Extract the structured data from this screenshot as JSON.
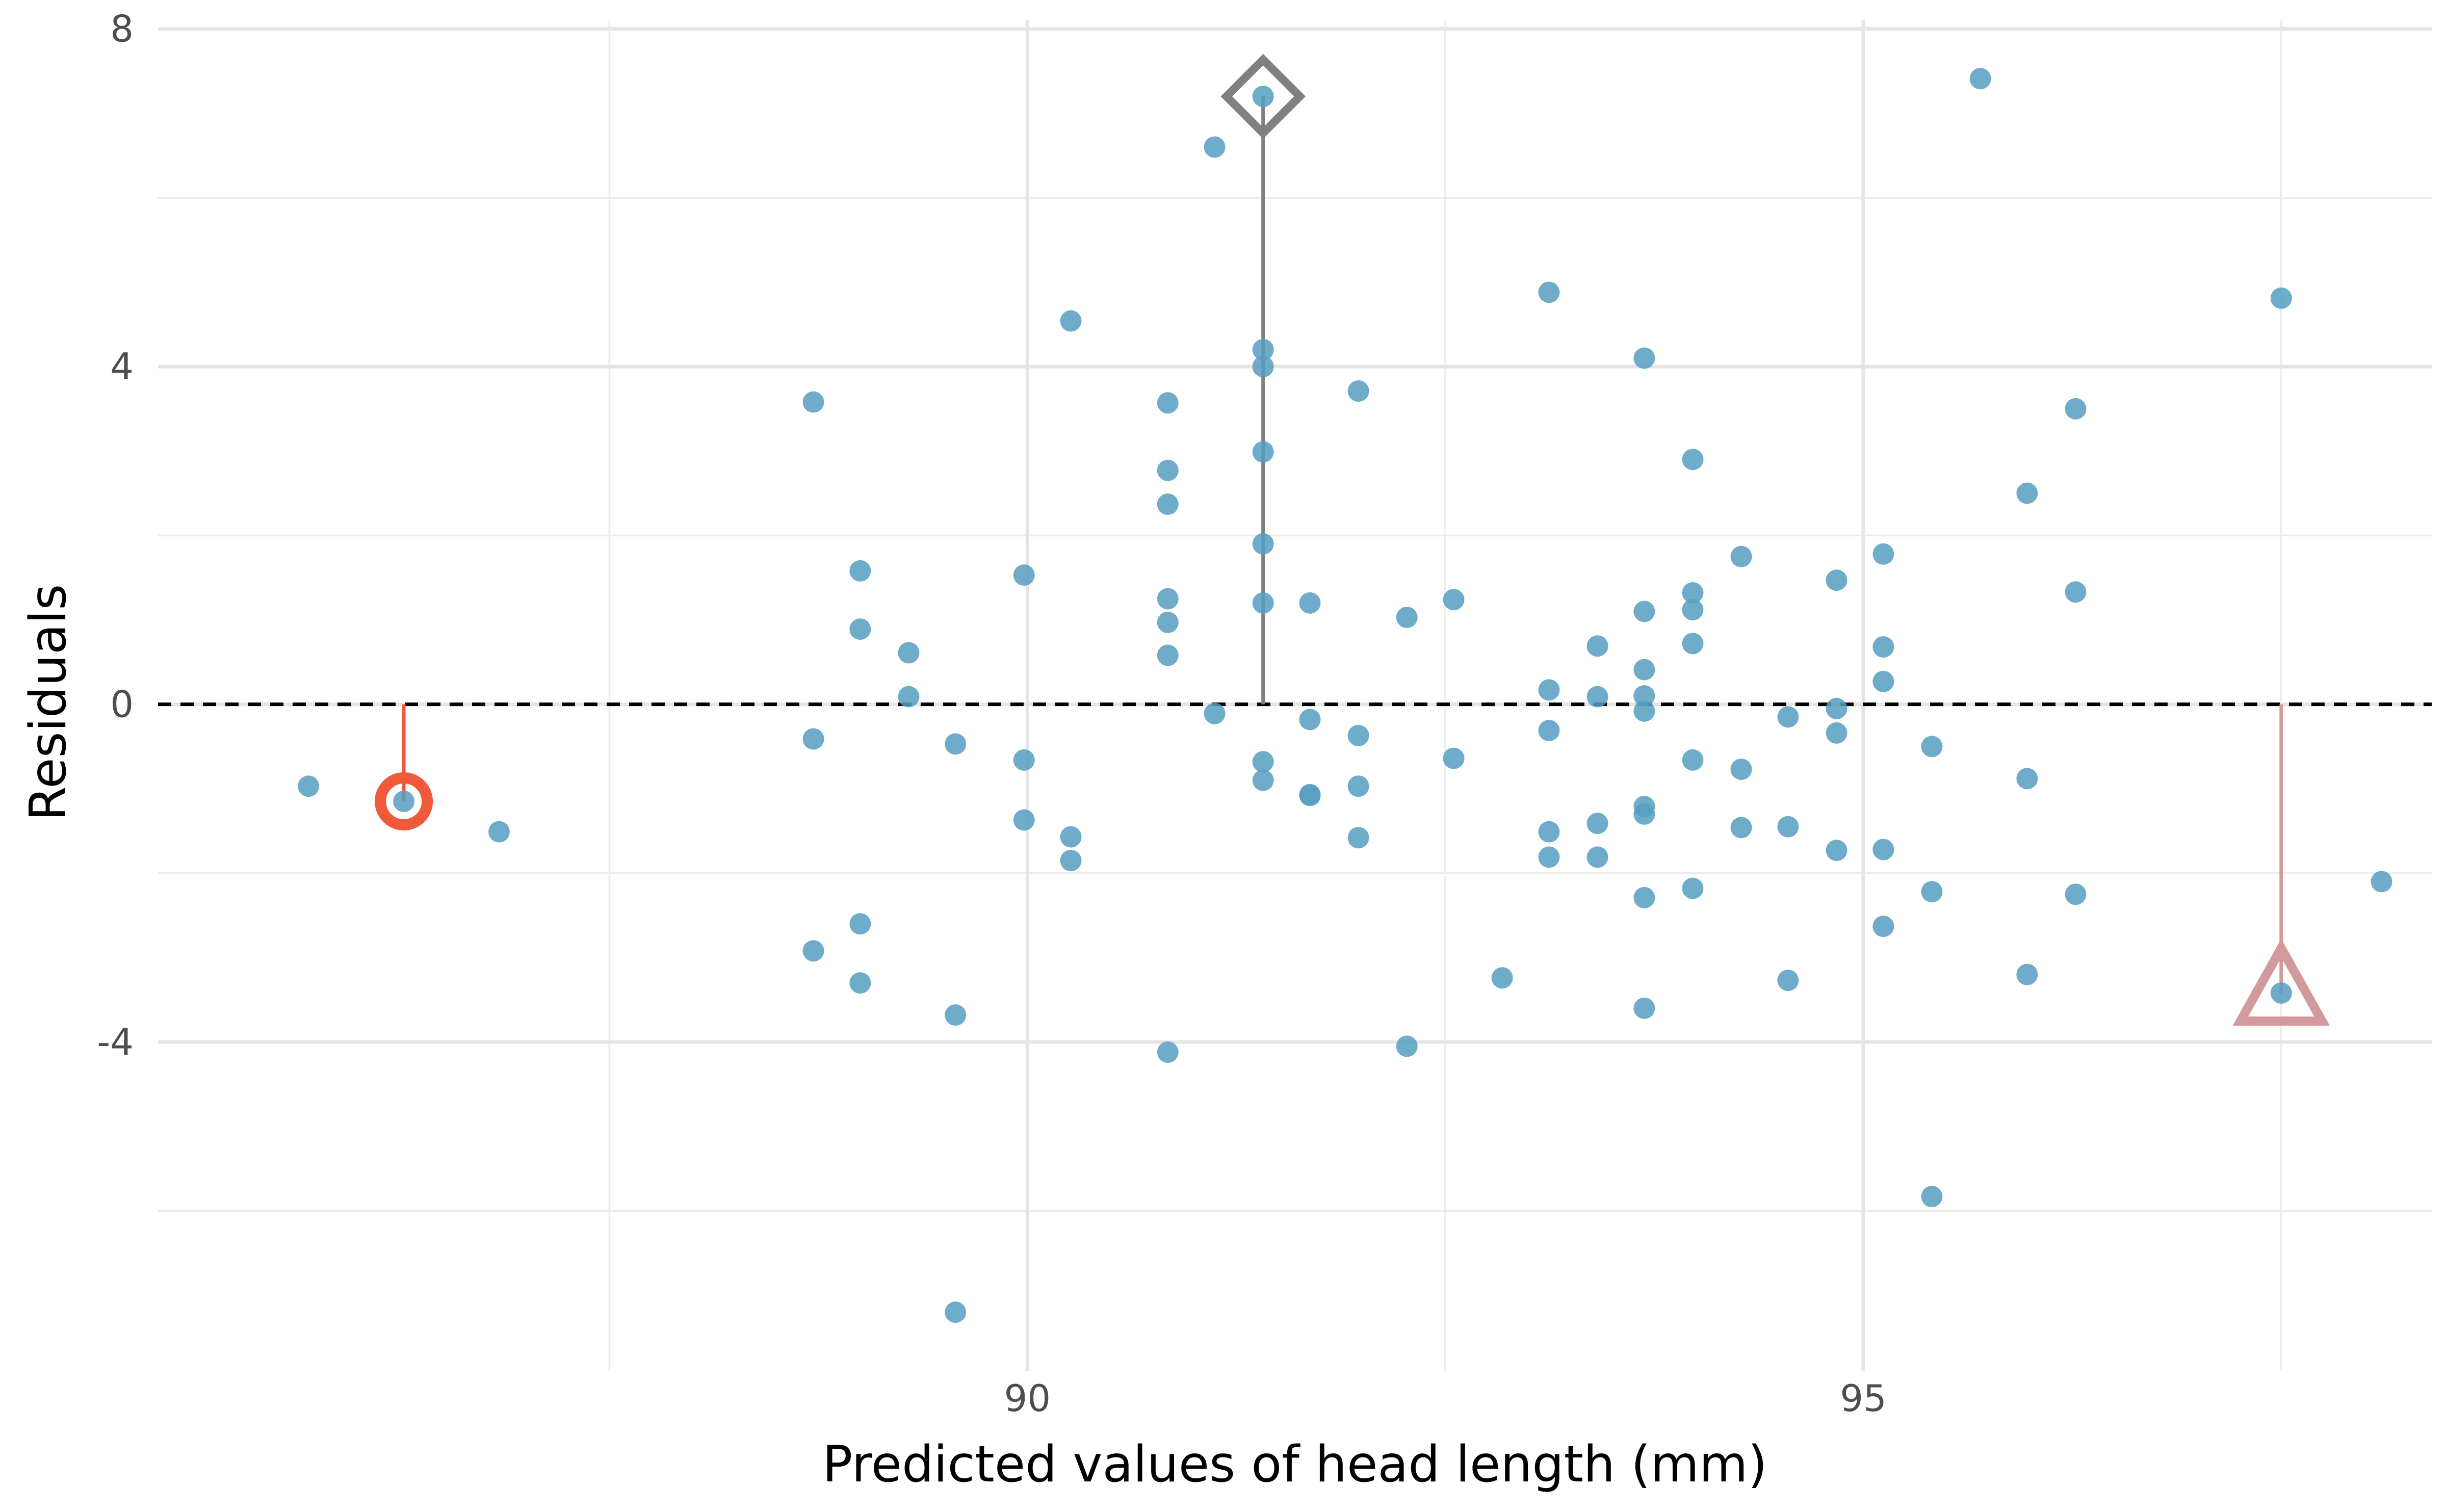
{
  "chart_data": {
    "type": "scatter",
    "title": "",
    "xlabel": "Predicted values of head length (mm)",
    "ylabel": "Residuals",
    "xlim": [
      84.8,
      98.4
    ],
    "ylim": [
      -7.9,
      8.1
    ],
    "x_ticks": [
      90,
      95
    ],
    "x_tick_labels": [
      "90",
      "95"
    ],
    "x_minor_ticks": [
      87.5,
      92.5,
      97.5
    ],
    "y_ticks": [
      -4,
      0,
      4,
      8
    ],
    "y_tick_labels": [
      "-4",
      "0",
      "4",
      "8"
    ],
    "y_minor_ticks": [
      -6,
      -2,
      2,
      6
    ],
    "grid": true,
    "reference_line": {
      "y": 0,
      "style": "dashed",
      "color": "#000000"
    },
    "point_color": "#569EBF",
    "points": [
      [
        85.7,
        -0.97
      ],
      [
        86.27,
        -1.15
      ],
      [
        86.84,
        -1.51
      ],
      [
        88.72,
        3.58
      ],
      [
        88.72,
        -0.41
      ],
      [
        88.72,
        -2.92
      ],
      [
        89.0,
        1.58
      ],
      [
        89.0,
        0.89
      ],
      [
        89.0,
        -2.6
      ],
      [
        89.0,
        -3.3
      ],
      [
        89.29,
        0.61
      ],
      [
        89.29,
        0.09
      ],
      [
        89.57,
        -0.47
      ],
      [
        89.57,
        -3.68
      ],
      [
        89.57,
        -7.2
      ],
      [
        89.98,
        1.53
      ],
      [
        89.98,
        -0.66
      ],
      [
        89.98,
        -1.37
      ],
      [
        90.26,
        4.54
      ],
      [
        90.26,
        -1.57
      ],
      [
        90.26,
        -1.85
      ],
      [
        90.84,
        3.57
      ],
      [
        90.84,
        2.77
      ],
      [
        90.84,
        2.37
      ],
      [
        90.84,
        1.25
      ],
      [
        90.84,
        0.97
      ],
      [
        90.84,
        0.58
      ],
      [
        90.84,
        -4.12
      ],
      [
        91.12,
        6.6
      ],
      [
        91.12,
        -0.11
      ],
      [
        91.41,
        7.2
      ],
      [
        91.41,
        4.2
      ],
      [
        91.41,
        4.0
      ],
      [
        91.41,
        2.99
      ],
      [
        91.41,
        1.9
      ],
      [
        91.41,
        1.2
      ],
      [
        91.41,
        -0.68
      ],
      [
        91.41,
        -0.9
      ],
      [
        91.69,
        1.2
      ],
      [
        91.69,
        -0.18
      ],
      [
        91.69,
        -1.07
      ],
      [
        91.69,
        -1.08
      ],
      [
        91.98,
        3.71
      ],
      [
        91.98,
        -0.37
      ],
      [
        91.98,
        -0.97
      ],
      [
        91.98,
        -1.58
      ],
      [
        92.27,
        1.03
      ],
      [
        92.27,
        -4.05
      ],
      [
        92.55,
        1.24
      ],
      [
        92.55,
        -0.64
      ],
      [
        92.84,
        -3.24
      ],
      [
        93.12,
        4.88
      ],
      [
        93.12,
        0.17
      ],
      [
        93.12,
        -0.31
      ],
      [
        93.12,
        -1.51
      ],
      [
        93.12,
        -1.81
      ],
      [
        93.41,
        0.69
      ],
      [
        93.41,
        0.09
      ],
      [
        93.41,
        -1.41
      ],
      [
        93.41,
        -1.81
      ],
      [
        93.69,
        4.1
      ],
      [
        93.69,
        1.1
      ],
      [
        93.69,
        0.41
      ],
      [
        93.69,
        0.1
      ],
      [
        93.69,
        -0.08
      ],
      [
        93.69,
        -1.21
      ],
      [
        93.69,
        -1.3
      ],
      [
        93.69,
        -2.29
      ],
      [
        93.69,
        -3.6
      ],
      [
        93.98,
        2.9
      ],
      [
        93.98,
        1.32
      ],
      [
        93.98,
        1.12
      ],
      [
        93.98,
        0.72
      ],
      [
        93.98,
        -0.66
      ],
      [
        93.98,
        -2.18
      ],
      [
        94.27,
        1.75
      ],
      [
        94.27,
        -0.77
      ],
      [
        94.27,
        -1.46
      ],
      [
        94.55,
        -0.15
      ],
      [
        94.55,
        -1.45
      ],
      [
        94.55,
        -3.27
      ],
      [
        94.84,
        1.47
      ],
      [
        94.84,
        -0.05
      ],
      [
        94.84,
        -0.34
      ],
      [
        94.84,
        -1.73
      ],
      [
        95.12,
        1.78
      ],
      [
        95.12,
        0.68
      ],
      [
        95.12,
        0.27
      ],
      [
        95.12,
        -1.72
      ],
      [
        95.12,
        -2.63
      ],
      [
        95.41,
        -0.5
      ],
      [
        95.41,
        -2.22
      ],
      [
        95.41,
        -5.83
      ],
      [
        95.7,
        7.41
      ],
      [
        95.98,
        2.5
      ],
      [
        95.98,
        -0.88
      ],
      [
        95.98,
        -3.2
      ],
      [
        96.27,
        1.33
      ],
      [
        96.27,
        3.5
      ],
      [
        96.27,
        -2.25
      ],
      [
        97.5,
        -3.42
      ],
      [
        97.5,
        4.81
      ],
      [
        98.1,
        -2.1
      ]
    ],
    "highlighted": [
      {
        "x": 86.27,
        "y": -1.15,
        "shape": "circle",
        "color": "#F05A3A"
      },
      {
        "x": 91.41,
        "y": 7.2,
        "shape": "diamond",
        "color": "#808080"
      },
      {
        "x": 97.5,
        "y": -3.42,
        "shape": "triangle",
        "color": "#D39A9E"
      }
    ]
  }
}
